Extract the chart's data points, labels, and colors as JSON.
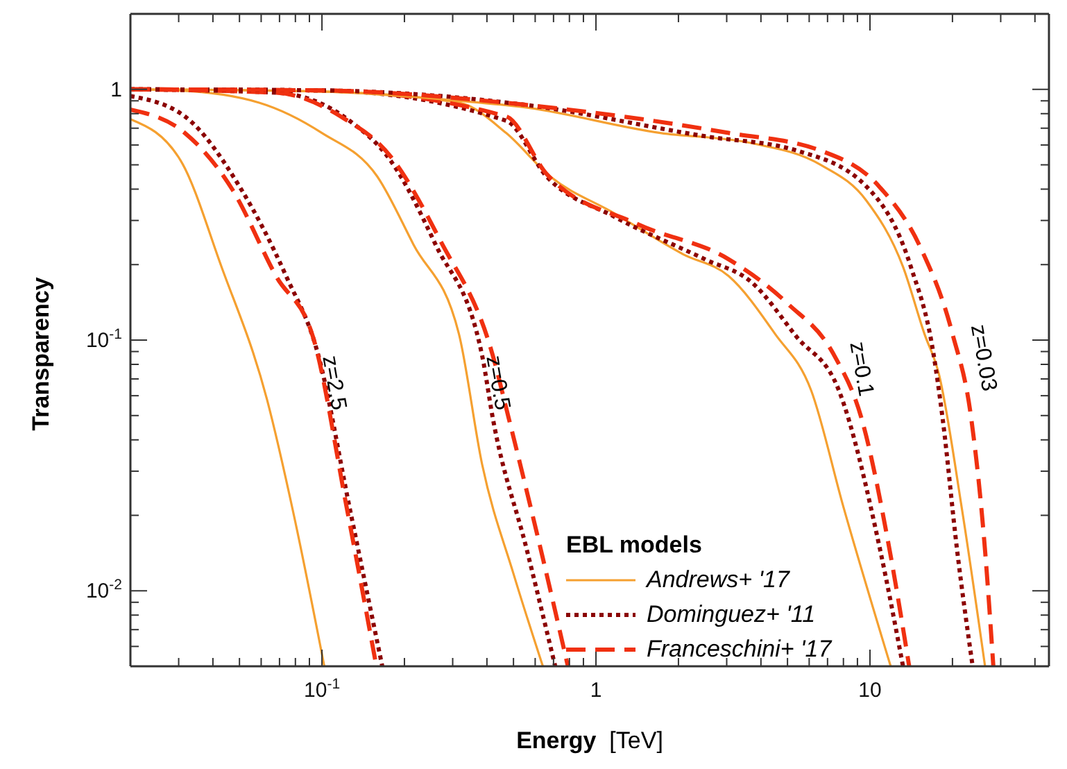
{
  "chart_data": {
    "type": "line",
    "xlabel": "Energy [TeV]",
    "ylabel": "Transparency",
    "legend_title": "EBL models",
    "legend": "bottom",
    "log": "xy",
    "grid": false,
    "xlim": [
      0.02,
      45
    ],
    "ylim": [
      0.005,
      2
    ],
    "xticks": [
      {
        "value": 0.02,
        "label": null
      },
      {
        "value": 0.03,
        "label": null
      },
      {
        "value": 0.04,
        "label": null
      },
      {
        "value": 0.05,
        "label": null
      },
      {
        "value": 0.06,
        "label": null
      },
      {
        "value": 0.07,
        "label": null
      },
      {
        "value": 0.08,
        "label": null
      },
      {
        "value": 0.09,
        "label": null
      },
      {
        "value": 0.1,
        "label": "10$^{-1}$"
      },
      {
        "value": 0.2,
        "label": null
      },
      {
        "value": 0.3,
        "label": null
      },
      {
        "value": 0.4,
        "label": null
      },
      {
        "value": 0.5,
        "label": null
      },
      {
        "value": 0.6,
        "label": null
      },
      {
        "value": 0.7,
        "label": null
      },
      {
        "value": 0.8,
        "label": null
      },
      {
        "value": 0.9,
        "label": null
      },
      1,
      {
        "value": 2,
        "label": null
      },
      {
        "value": 3,
        "label": null
      },
      {
        "value": 4,
        "label": null
      },
      {
        "value": 5,
        "label": null
      },
      {
        "value": 6,
        "label": null
      },
      {
        "value": 7,
        "label": null
      },
      {
        "value": 8,
        "label": null
      },
      {
        "value": 9,
        "label": null
      },
      10,
      {
        "value": 20,
        "label": null
      },
      {
        "value": 30,
        "label": null
      },
      {
        "value": 40,
        "label": null
      }
    ],
    "yticks": [
      {
        "value": 0.006,
        "label": null
      },
      {
        "value": 0.007,
        "label": null
      },
      {
        "value": 0.008,
        "label": null
      },
      {
        "value": 0.009,
        "label": null
      },
      {
        "value": 0.01,
        "label": "10$^{-2}$"
      },
      {
        "value": 0.02,
        "label": null
      },
      {
        "value": 0.03,
        "label": null
      },
      {
        "value": 0.04,
        "label": null
      },
      {
        "value": 0.05,
        "label": null
      },
      {
        "value": 0.06,
        "label": null
      },
      {
        "value": 0.07,
        "label": null
      },
      {
        "value": 0.08,
        "label": null
      },
      {
        "value": 0.09,
        "label": null
      },
      {
        "value": 0.1,
        "label": "10$^{-1}$"
      },
      {
        "value": 0.2,
        "label": null
      },
      {
        "value": 0.3,
        "label": null
      },
      {
        "value": 0.4,
        "label": null
      },
      {
        "value": 0.5,
        "label": null
      },
      {
        "value": 0.6,
        "label": null
      },
      {
        "value": 0.7,
        "label": null
      },
      {
        "value": 0.8,
        "label": null
      },
      {
        "value": 0.9,
        "label": null
      },
      1
    ],
    "series": [
      {
        "name": "Andrews+ '17",
        "color": "#f5a030",
        "line_style": "solid",
        "x": [
          0.02,
          0.0305,
          0.043,
          0.063,
          0.079,
          0.102
        ],
        "values": [
          0.76,
          0.52,
          0.196,
          0.058,
          0.02,
          0.005
        ]
      },
      {
        "name": "Dominguez+ '11",
        "color": "#8b0000",
        "line_style": "dotted",
        "x": [
          0.02,
          0.0316,
          0.05,
          0.074,
          0.097,
          0.126,
          0.166
        ],
        "values": [
          0.94,
          0.78,
          0.41,
          0.18,
          0.087,
          0.0216,
          0.005
        ]
      },
      {
        "name": "Franceschini+ '17",
        "color": "#f03010",
        "line_style": "dashed",
        "x": [
          0.02,
          0.0316,
          0.047,
          0.068,
          0.093,
          0.123,
          0.158
        ],
        "values": [
          0.83,
          0.67,
          0.4,
          0.18,
          0.102,
          0.0216,
          0.005
        ]
      },
      {
        "color": "#f5a030",
        "line_style": "solid",
        "x": [
          0.02,
          0.03,
          0.059,
          0.1,
          0.159,
          0.216,
          0.316,
          0.384,
          0.5,
          0.64
        ],
        "values": [
          1,
          0.99,
          0.885,
          0.67,
          0.45,
          0.24,
          0.106,
          0.032,
          0.0117,
          0.005
        ]
      },
      {
        "color": "#8b0000",
        "line_style": "dotted",
        "x": [
          0.02,
          0.068,
          0.126,
          0.178,
          0.26,
          0.384,
          0.42,
          0.56,
          0.71
        ],
        "values": [
          1,
          0.97,
          0.75,
          0.52,
          0.24,
          0.087,
          0.049,
          0.0145,
          0.005
        ]
      },
      {
        "color": "#f03010",
        "line_style": "dashed",
        "x": [
          0.02,
          0.068,
          0.117,
          0.178,
          0.27,
          0.42,
          0.48,
          0.63,
          0.79
        ],
        "values": [
          1,
          0.97,
          0.78,
          0.54,
          0.25,
          0.087,
          0.049,
          0.0145,
          0.005
        ]
      },
      {
        "color": "#f5a030",
        "line_style": "solid",
        "x": [
          0.02,
          0.1,
          0.316,
          0.47,
          0.68,
          1.17,
          2.08,
          3.05,
          4.5,
          6.1,
          8,
          11.9
        ],
        "values": [
          1,
          0.98,
          0.885,
          0.67,
          0.45,
          0.32,
          0.22,
          0.18,
          0.106,
          0.063,
          0.0216,
          0.005
        ]
      },
      {
        "color": "#8b0000",
        "line_style": "dotted",
        "x": [
          0.02,
          0.1,
          0.47,
          0.66,
          1.17,
          2.5,
          3.7,
          5.4,
          7.7,
          10.9,
          13.2
        ],
        "values": [
          1,
          0.99,
          0.75,
          0.45,
          0.31,
          0.21,
          0.17,
          0.103,
          0.063,
          0.0145,
          0.005
        ]
      },
      {
        "color": "#f03010",
        "line_style": "dashed",
        "x": [
          0.02,
          0.1,
          0.47,
          0.66,
          1.42,
          3.05,
          5,
          7.4,
          9.3,
          11.8,
          13.9
        ],
        "values": [
          1,
          0.99,
          0.78,
          0.46,
          0.29,
          0.21,
          0.14,
          0.087,
          0.049,
          0.0145,
          0.005
        ]
      },
      {
        "color": "#f5a030",
        "line_style": "solid",
        "x": [
          0.02,
          0.1,
          0.316,
          0.54,
          1.72,
          3.7,
          6.6,
          9.7,
          13.2,
          15.8,
          17.8,
          21.6,
          26.3
        ],
        "values": [
          1,
          0.98,
          0.9,
          0.85,
          0.67,
          0.61,
          0.5,
          0.36,
          0.196,
          0.106,
          0.074,
          0.0216,
          0.005
        ]
      },
      {
        "color": "#8b0000",
        "line_style": "dotted",
        "x": [
          0.02,
          0.1,
          0.54,
          2.5,
          5.4,
          9.7,
          14.1,
          17,
          18.4,
          20.8,
          23.7
        ],
        "values": [
          1,
          0.99,
          0.87,
          0.65,
          0.57,
          0.41,
          0.196,
          0.09,
          0.049,
          0.0145,
          0.005
        ]
      },
      {
        "color": "#f03010",
        "line_style": "dashed",
        "x": [
          0.02,
          0.1,
          0.54,
          3.05,
          6.6,
          10.8,
          15.4,
          20,
          23.4,
          26.3,
          28.2
        ],
        "values": [
          1,
          0.99,
          0.87,
          0.67,
          0.57,
          0.41,
          0.23,
          0.106,
          0.049,
          0.0145,
          0.005
        ]
      }
    ],
    "annotations": [
      "z=2.5",
      "z=0.5",
      "z=0.1",
      "z=0.03"
    ]
  }
}
